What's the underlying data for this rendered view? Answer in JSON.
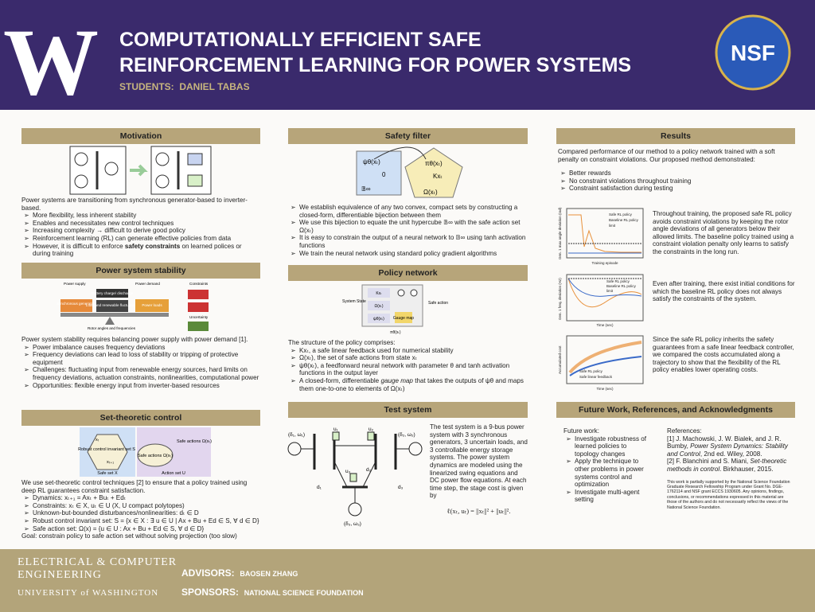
{
  "header": {
    "logo_left": "W",
    "title_line1": "COMPUTATIONALLY EFFICIENT SAFE",
    "title_line2": "REINFORCEMENT LEARNING FOR POWER SYSTEMS",
    "students_label": "STUDENTS:",
    "student": "DANIEL TABAS",
    "logo_right": "NSF"
  },
  "motivation": {
    "heading": "Motivation",
    "intro": "Power systems are transitioning from synchronous generator-based to inverter-based.",
    "bullets": [
      "More flexibility, less inherent stability",
      "Enables and necessitates new control techniques",
      "Increasing complexity → difficult to derive good policy",
      "Reinforcement learning (RL) can generate effective policies from data",
      [
        {
          "text": "However, it is difficult to enforce "
        },
        {
          "bold": "safety constraints"
        },
        {
          "text": " on learned polices or during training"
        }
      ]
    ]
  },
  "stability": {
    "heading": "Power system stability",
    "figure": {
      "supply": "Power supply",
      "demand": "Power demand",
      "constraints": "Constraints",
      "generators": "Synchronous generators",
      "battery": "Battery charge/ discharge",
      "fluctuations": "Load and renewable fluctuations",
      "loads": "Power loads",
      "rotor": "Rotor angles and frequencies",
      "uncertainty": "Uncertainty"
    },
    "intro": "Power system stability requires balancing power supply with power demand [1].",
    "bullets": [
      "Power imbalance causes frequency deviations",
      "Frequency deviations can lead to loss of stability or tripping of protective equipment",
      "Challenges: fluctuating input from renewable energy sources, hard limits on frequency deviations, actuation constraints, nonlinearities, computational power",
      "Opportunities: flexible energy input from inverter-based resources"
    ]
  },
  "set_theoretic": {
    "heading": "Set-theoretic control",
    "figure": {
      "invariant": "Robust control invariant set S",
      "safe_set": "Safe set X",
      "safe_actions": "Safe actions Ω(xₜ)",
      "action_set": "Action set U",
      "x_t": "xₜ",
      "x_next": "xₜ₊₁"
    },
    "intro": "We use set-theoretic control techniques [2] to ensure that a policy trained using deep RL guarantees constraint satisfaction.",
    "bullets": [
      "Dynamics: xₜ₊₁ = Axₜ + Buₜ + Edₜ",
      "Constraints: xₜ ∈ X, uₜ ∈ U (X, U compact polytopes)",
      "Unknown-but-bounded disturbances/nonlinearities: dₜ ∈ D",
      "Robust control invariant set: S = {x ∈ X : ∃ u ∈ U | Ax + Bu + Ed ∈ S, ∀ d ∈ D}",
      "Safe action set: Ω(x) = {u ∈ U : Ax + Bu + Ed ∈ S, ∀ d ∈ D}"
    ],
    "goal": "Goal: constrain policy to safe action set without solving projection (too slow)"
  },
  "safety_filter": {
    "heading": "Safety filter",
    "figure": {
      "psi": "ψθ(xₜ)",
      "zero": "0",
      "cube": "𝔹∞",
      "pi": "πθ(xₜ)",
      "kx": "Kxₜ",
      "omega": "Ω(xₜ)"
    },
    "bullets": [
      "We establish equivalence of any two convex, compact sets by constructing a closed-form, differentiable bijection between them",
      "We use this bijection to equate the unit hypercube 𝔹∞ with the safe action set Ω(xₜ)",
      "It is easy to constrain the output of a neural network to 𝔹∞ using tanh activation functions",
      "We train the neural network using standard policy gradient algorithms"
    ]
  },
  "policy_network": {
    "heading": "Policy network",
    "figure": {
      "state": "System State",
      "kx": "Kxₜ",
      "omega": "Ω(xₜ)",
      "psi": "ψθ(xₜ)",
      "gauge": "Gauge map",
      "action": "Safe action",
      "pi": "πθ(xₜ)"
    },
    "intro": "The structure of the policy comprises:",
    "bullets": [
      "Kxₜ, a safe linear feedback used for numerical stability",
      "Ω(xₜ), the set of safe actions from state xₜ",
      "ψθ(xₜ), a feedforward neural network with parameter θ and tanh activation functions in the output layer",
      [
        {
          "text": "A closed-form, differentiable "
        },
        {
          "italic": "gauge map"
        },
        {
          "text": " that takes the outputs of ψθ and maps them one-to-one to elements of Ω(xₜ)"
        }
      ]
    ]
  },
  "test_system": {
    "heading": "Test system",
    "figure": {
      "g1": "(δ₁, ω₁)",
      "g2": "(δ₂, ω₂)",
      "g3": "(δ₃, ω₃)",
      "u1": "u₁",
      "u2": "u₂",
      "u3": "u₃",
      "d1": "d₁",
      "d2": "d₂",
      "d3": "d₃"
    },
    "text": "The test system is a 9-bus power system with 3 synchronous generators, 3 uncertain loads, and 3 controllable energy storage systems. The power system dynamics are modeled using the linearized swing equations and DC power flow equations. At each time step, the stage cost is given by",
    "formula": "ℓ(xₜ, uₜ) = ||xₜ||² + ||uₜ||²."
  },
  "results": {
    "heading": "Results",
    "intro": "Compared performance of our method to a policy network trained with a soft penalty on constraint violations. Our proposed method demonstrated:",
    "bullets": [
      "Better rewards",
      "No constraint violations throughout training",
      "Constraint satisfaction during testing"
    ],
    "plot1": {
      "ylabel": "Gen. 1 max angle deviation (rad)",
      "xlabel": "Training episode",
      "legend": [
        "Safe RL policy",
        "Baseline RL policy",
        "limit"
      ]
    },
    "caption1": "Throughout training, the proposed safe RL policy avoids constraint violations by keeping the rotor angle deviations of all generators below their allowed limits. The baseline policy trained using a constraint violation penalty only learns to satisfy the constraints in the long run.",
    "plot2": {
      "ylabel": "Gen. 1 freq. deviation (Hz)",
      "xlabel": "Time (sec)",
      "legend": [
        "Safe RL policy",
        "Baseline RL policy",
        "limit"
      ]
    },
    "caption2": "Even after training, there exist initial conditions for which the baseline RL policy does not always satisfy the constraints of the system.",
    "plot3": {
      "ylabel": "Accumulated cost",
      "xlabel": "Time (sec)",
      "legend": [
        "Safe RL policy",
        "Safe linear feedback"
      ]
    },
    "caption3": "Since the safe RL policy inherits the safety guarantees from a safe linear feedback controller, we compared the costs accumulated along a trajectory to show that the flexibility of the RL policy enables lower operating costs."
  },
  "future": {
    "heading": "Future Work, References, and Acknowledgments",
    "label": "Future work:",
    "bullets": [
      "Investigate robustness of learned policies to topology changes",
      "Apply the technique to other problems in power systems control and optimization",
      "Investigate multi-agent setting"
    ],
    "references_label": "References:",
    "references": [
      [
        {
          "text": "[1]     J. Machowski, J. W. Bialek, and J. R. Bumby, "
        },
        {
          "italic": "Power System Dynamics: Stability and Control"
        },
        {
          "text": ", 2nd ed. Wiley, 2008."
        }
      ],
      [
        {
          "text": "[2]     F. Blanchini and S. Miani, "
        },
        {
          "italic": "Set-theoretic methods in control"
        },
        {
          "text": ". Birkhauser, 2015."
        }
      ]
    ],
    "acknowledgment": "This work is partially supported by the National Science Foundation Graduate Research Fellowship Program under Grant No. DGE-1762114 and NSF grant ECCS 1930605. Any opinions, findings, conclusions, or recommendations expressed in this material are those of the authors and do not necessarily reflect the views of the National Science Foundation."
  },
  "footer": {
    "dept_line1": "ELECTRICAL & COMPUTER",
    "dept_line2": "ENGINEERING",
    "university": "UNIVERSITY of WASHINGTON",
    "advisors_label": "ADVISORS:",
    "advisor": "BAOSEN ZHANG",
    "sponsors_label": "SPONSORS:",
    "sponsor": "NATIONAL SCIENCE FOUNDATION"
  }
}
